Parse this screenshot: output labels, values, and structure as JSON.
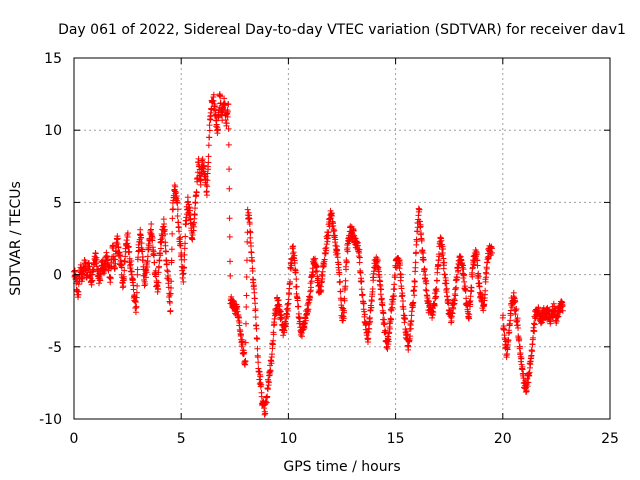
{
  "chart_data": {
    "type": "scatter",
    "title": "Day 061 of 2022, Sidereal Day-to-day VTEC variation (SDTVAR) for receiver dav1",
    "xlabel": "GPS time / hours",
    "ylabel": "SDTVAR / TECUs",
    "xlim": [
      0,
      25
    ],
    "ylim": [
      -10,
      15
    ],
    "xticks": [
      0,
      5,
      10,
      15,
      20,
      25
    ],
    "yticks": [
      -10,
      -5,
      0,
      5,
      10,
      15
    ],
    "xtick_labels": [
      "0",
      "5",
      "10",
      "15",
      "20",
      "25"
    ],
    "ytick_labels": [
      "-10",
      "-5",
      "0",
      "5",
      "10",
      "15"
    ],
    "grid": true,
    "marker": "+",
    "color": "#ff0000",
    "series": [
      {
        "name": "SDTVAR",
        "points": [
          [
            0.0,
            0.2
          ],
          [
            0.1,
            -0.6
          ],
          [
            0.2,
            -1.2
          ],
          [
            0.3,
            0.5
          ],
          [
            0.4,
            -0.3
          ],
          [
            0.5,
            1.0
          ],
          [
            0.6,
            -0.2
          ],
          [
            0.7,
            0.8
          ],
          [
            0.8,
            -0.5
          ],
          [
            0.9,
            0.3
          ],
          [
            1.0,
            1.5
          ],
          [
            1.1,
            0.2
          ],
          [
            1.2,
            -0.4
          ],
          [
            1.3,
            0.9
          ],
          [
            1.4,
            0.1
          ],
          [
            1.5,
            1.2
          ],
          [
            1.6,
            0.5
          ],
          [
            1.7,
            -0.2
          ],
          [
            1.8,
            2.0
          ],
          [
            1.9,
            0.4
          ],
          [
            2.0,
            2.5
          ],
          [
            2.1,
            1.5
          ],
          [
            2.2,
            0.6
          ],
          [
            2.3,
            -0.8
          ],
          [
            2.4,
            1.8
          ],
          [
            2.5,
            2.6
          ],
          [
            2.6,
            1.1
          ],
          [
            2.7,
            0.2
          ],
          [
            2.8,
            -1.5
          ],
          [
            2.9,
            -2.3
          ],
          [
            3.0,
            1.6
          ],
          [
            3.1,
            2.8
          ],
          [
            3.2,
            1.0
          ],
          [
            3.3,
            -0.5
          ],
          [
            3.4,
            0.8
          ],
          [
            3.5,
            2.0
          ],
          [
            3.6,
            3.5
          ],
          [
            3.7,
            1.4
          ],
          [
            3.8,
            0.0
          ],
          [
            3.9,
            -1.2
          ],
          [
            4.0,
            1.5
          ],
          [
            4.1,
            2.7
          ],
          [
            4.2,
            3.5
          ],
          [
            4.3,
            1.0
          ],
          [
            4.4,
            -0.6
          ],
          [
            4.5,
            -2.5
          ],
          [
            4.6,
            4.5
          ],
          [
            4.7,
            6.2
          ],
          [
            4.8,
            5.0
          ],
          [
            4.9,
            3.0
          ],
          [
            5.0,
            1.5
          ],
          [
            5.1,
            -0.5
          ],
          [
            5.2,
            3.5
          ],
          [
            5.3,
            5.0
          ],
          [
            5.4,
            4.2
          ],
          [
            5.5,
            2.5
          ],
          [
            5.6,
            3.6
          ],
          [
            5.7,
            5.5
          ],
          [
            5.8,
            7.8
          ],
          [
            5.9,
            6.5
          ],
          [
            6.0,
            8.0
          ],
          [
            6.1,
            7.0
          ],
          [
            6.2,
            5.5
          ],
          [
            6.3,
            9.5
          ],
          [
            6.4,
            11.5
          ],
          [
            6.5,
            12.3
          ],
          [
            6.6,
            11.0
          ],
          [
            6.7,
            10.0
          ],
          [
            6.8,
            12.5
          ],
          [
            6.9,
            11.0
          ],
          [
            7.0,
            12.2
          ],
          [
            7.1,
            10.5
          ],
          [
            7.2,
            11.8
          ],
          [
            7.3,
            -2.0
          ],
          [
            7.4,
            -1.8
          ],
          [
            7.5,
            -2.5
          ],
          [
            7.6,
            -2.2
          ],
          [
            7.7,
            -3.0
          ],
          [
            7.8,
            -4.5
          ],
          [
            7.9,
            -5.5
          ],
          [
            8.0,
            -6.0
          ],
          [
            8.1,
            4.5
          ],
          [
            8.2,
            3.5
          ],
          [
            8.3,
            1.0
          ],
          [
            8.4,
            -1.0
          ],
          [
            8.5,
            -3.5
          ],
          [
            8.6,
            -6.5
          ],
          [
            8.7,
            -7.5
          ],
          [
            8.8,
            -9.0
          ],
          [
            8.9,
            -9.5
          ],
          [
            9.0,
            -8.5
          ],
          [
            9.1,
            -7.0
          ],
          [
            9.2,
            -6.0
          ],
          [
            9.3,
            -4.0
          ],
          [
            9.4,
            -2.5
          ],
          [
            9.5,
            -1.8
          ],
          [
            9.6,
            -2.5
          ],
          [
            9.7,
            -3.5
          ],
          [
            9.8,
            -4.0
          ],
          [
            9.9,
            -3.0
          ],
          [
            10.0,
            -2.0
          ],
          [
            10.1,
            0.5
          ],
          [
            10.2,
            1.8
          ],
          [
            10.3,
            0.8
          ],
          [
            10.4,
            -1.5
          ],
          [
            10.5,
            -3.0
          ],
          [
            10.6,
            -4.0
          ],
          [
            10.7,
            -3.8
          ],
          [
            10.8,
            -3.0
          ],
          [
            10.9,
            -2.5
          ],
          [
            11.0,
            -1.5
          ],
          [
            11.1,
            0.0
          ],
          [
            11.2,
            1.0
          ],
          [
            11.3,
            0.5
          ],
          [
            11.4,
            -0.8
          ],
          [
            11.5,
            -1.2
          ],
          [
            11.6,
            0.2
          ],
          [
            11.7,
            1.5
          ],
          [
            11.8,
            2.5
          ],
          [
            11.9,
            3.5
          ],
          [
            12.0,
            4.2
          ],
          [
            12.1,
            3.0
          ],
          [
            12.2,
            2.0
          ],
          [
            12.3,
            1.2
          ],
          [
            12.4,
            -0.5
          ],
          [
            12.5,
            -3.0
          ],
          [
            12.6,
            -2.5
          ],
          [
            12.7,
            1.0
          ],
          [
            12.8,
            2.5
          ],
          [
            12.9,
            3.0
          ],
          [
            13.0,
            2.8
          ],
          [
            13.1,
            2.5
          ],
          [
            13.2,
            2.0
          ],
          [
            13.3,
            1.5
          ],
          [
            13.4,
            -0.5
          ],
          [
            13.5,
            -2.0
          ],
          [
            13.6,
            -3.5
          ],
          [
            13.7,
            -4.5
          ],
          [
            13.8,
            -3.0
          ],
          [
            13.9,
            -1.5
          ],
          [
            14.0,
            0.5
          ],
          [
            14.1,
            1.2
          ],
          [
            14.2,
            0.5
          ],
          [
            14.3,
            -1.0
          ],
          [
            14.4,
            -2.5
          ],
          [
            14.5,
            -4.0
          ],
          [
            14.6,
            -5.0
          ],
          [
            14.7,
            -4.0
          ],
          [
            14.8,
            -2.5
          ],
          [
            14.9,
            -1.5
          ],
          [
            15.0,
            0.5
          ],
          [
            15.1,
            1.0
          ],
          [
            15.2,
            0.8
          ],
          [
            15.3,
            -1.5
          ],
          [
            15.4,
            -3.0
          ],
          [
            15.5,
            -4.2
          ],
          [
            15.6,
            -5.0
          ],
          [
            15.7,
            -3.5
          ],
          [
            15.8,
            -2.0
          ],
          [
            15.9,
            -0.5
          ],
          [
            16.0,
            3.0
          ],
          [
            16.1,
            4.5
          ],
          [
            16.2,
            2.5
          ],
          [
            16.3,
            1.0
          ],
          [
            16.4,
            -0.5
          ],
          [
            16.5,
            -2.0
          ],
          [
            16.6,
            -2.5
          ],
          [
            16.7,
            -3.0
          ],
          [
            16.8,
            -2.0
          ],
          [
            16.9,
            -1.0
          ],
          [
            17.0,
            1.0
          ],
          [
            17.1,
            2.5
          ],
          [
            17.2,
            1.5
          ],
          [
            17.3,
            0.0
          ],
          [
            17.4,
            -1.5
          ],
          [
            17.5,
            -2.5
          ],
          [
            17.6,
            -3.0
          ],
          [
            17.7,
            -2.0
          ],
          [
            17.8,
            -1.0
          ],
          [
            17.9,
            0.5
          ],
          [
            18.0,
            1.2
          ],
          [
            18.1,
            0.8
          ],
          [
            18.2,
            -0.5
          ],
          [
            18.3,
            -2.0
          ],
          [
            18.4,
            -3.0
          ],
          [
            18.5,
            -1.5
          ],
          [
            18.6,
            0.5
          ],
          [
            18.7,
            1.5
          ],
          [
            18.8,
            1.0
          ],
          [
            18.9,
            -0.8
          ],
          [
            19.0,
            -1.8
          ],
          [
            19.1,
            -2.2
          ],
          [
            19.2,
            -0.5
          ],
          [
            19.3,
            1.2
          ],
          [
            19.4,
            1.8
          ],
          [
            19.5,
            1.5
          ],
          [
            20.0,
            -3.0
          ],
          [
            20.1,
            -4.5
          ],
          [
            20.2,
            -5.5
          ],
          [
            20.3,
            -4.0
          ],
          [
            20.4,
            -2.0
          ],
          [
            20.5,
            -1.5
          ],
          [
            20.6,
            -2.5
          ],
          [
            20.7,
            -3.5
          ],
          [
            20.8,
            -5.0
          ],
          [
            20.9,
            -6.5
          ],
          [
            21.0,
            -7.5
          ],
          [
            21.1,
            -8.0
          ],
          [
            21.2,
            -7.0
          ],
          [
            21.3,
            -6.0
          ],
          [
            21.4,
            -4.5
          ],
          [
            21.5,
            -3.0
          ],
          [
            21.6,
            -2.5
          ],
          [
            21.7,
            -2.8
          ],
          [
            21.8,
            -3.2
          ],
          [
            21.9,
            -2.5
          ],
          [
            22.0,
            -3.0
          ],
          [
            22.1,
            -2.5
          ],
          [
            22.2,
            -3.0
          ],
          [
            22.3,
            -2.8
          ],
          [
            22.4,
            -2.2
          ],
          [
            22.5,
            -3.0
          ],
          [
            22.6,
            -2.5
          ],
          [
            22.7,
            -2.0
          ],
          [
            22.8,
            -2.5
          ]
        ]
      }
    ]
  }
}
